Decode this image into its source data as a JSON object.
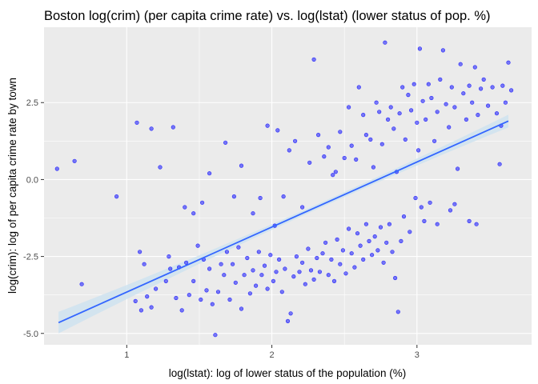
{
  "chart_data": {
    "type": "scatter",
    "title": "Boston log(crim) (per capita crime rate) vs. log(lstat) (lower status of pop. %)",
    "xlabel": "log(lstat): log of lower status of the population (%)",
    "ylabel": "log(crim): log of per capita crime rate by town",
    "xlim": [
      0.43,
      3.79
    ],
    "ylim": [
      -5.37,
      4.95
    ],
    "x_ticks": [
      1,
      2,
      3
    ],
    "x_tick_labels": [
      "1",
      "2",
      "3"
    ],
    "y_ticks": [
      -5.0,
      -2.5,
      0.0,
      2.5
    ],
    "y_tick_labels": [
      "-5.0",
      "-2.5",
      "0.0",
      "2.5"
    ],
    "grid": true,
    "legend": "none",
    "colors": {
      "panel": "#ebebeb",
      "grid": "#ffffff",
      "points": "#0000ff",
      "fit_line": "#3366ff",
      "confidence_band": "#cfe3f0"
    },
    "fit": {
      "method": "linear regression",
      "x_range": [
        0.53,
        3.63
      ],
      "y_at_x_min": -4.65,
      "y_at_x_max": 1.9,
      "ci_halfwidth_at_ends": 0.35,
      "ci_halfwidth_at_center": 0.08,
      "x_center": 2.37
    },
    "series": [
      {
        "points": [
          [
            0.52,
            0.35
          ],
          [
            0.64,
            0.6
          ],
          [
            0.69,
            -3.4
          ],
          [
            0.93,
            -0.55
          ],
          [
            1.07,
            1.85
          ],
          [
            1.17,
            1.65
          ],
          [
            1.32,
            1.7
          ],
          [
            1.09,
            -2.35
          ],
          [
            1.12,
            -2.75
          ],
          [
            1.06,
            -3.95
          ],
          [
            1.1,
            -4.25
          ],
          [
            1.14,
            -3.8
          ],
          [
            1.17,
            -4.15
          ],
          [
            1.2,
            -3.55
          ],
          [
            1.27,
            -3.3
          ],
          [
            1.29,
            -2.5
          ],
          [
            1.3,
            -2.9
          ],
          [
            1.34,
            -3.85
          ],
          [
            1.36,
            -2.85
          ],
          [
            1.38,
            -4.25
          ],
          [
            1.41,
            -2.7
          ],
          [
            1.43,
            -3.75
          ],
          [
            1.46,
            -3.3
          ],
          [
            1.49,
            -2.15
          ],
          [
            1.51,
            -3.9
          ],
          [
            1.53,
            -2.6
          ],
          [
            1.55,
            -3.6
          ],
          [
            1.57,
            -2.9
          ],
          [
            1.59,
            -4.05
          ],
          [
            1.61,
            -5.05
          ],
          [
            1.63,
            -3.65
          ],
          [
            1.65,
            -2.75
          ],
          [
            1.67,
            -3.1
          ],
          [
            1.69,
            -2.35
          ],
          [
            1.71,
            -3.9
          ],
          [
            1.73,
            -2.75
          ],
          [
            1.75,
            -3.35
          ],
          [
            1.77,
            -2.2
          ],
          [
            1.79,
            -4.2
          ],
          [
            1.81,
            -3.1
          ],
          [
            1.83,
            -2.55
          ],
          [
            1.85,
            -3.7
          ],
          [
            1.87,
            -2.95
          ],
          [
            1.89,
            -3.45
          ],
          [
            1.91,
            -2.35
          ],
          [
            1.93,
            -3.1
          ],
          [
            1.95,
            -2.8
          ],
          [
            1.97,
            -3.55
          ],
          [
            1.99,
            -2.45
          ],
          [
            2.01,
            -3.3
          ],
          [
            2.03,
            -3.0
          ],
          [
            2.05,
            -2.6
          ],
          [
            2.07,
            -3.65
          ],
          [
            2.09,
            -2.9
          ],
          [
            2.11,
            -4.6
          ],
          [
            2.13,
            -4.35
          ],
          [
            2.15,
            -3.15
          ],
          [
            2.17,
            -2.5
          ],
          [
            2.19,
            -3.0
          ],
          [
            2.21,
            -2.7
          ],
          [
            2.23,
            -3.4
          ],
          [
            2.25,
            -2.25
          ],
          [
            2.27,
            -2.95
          ],
          [
            2.29,
            -3.25
          ],
          [
            2.31,
            -2.55
          ],
          [
            2.33,
            -3.0
          ],
          [
            2.35,
            -2.4
          ],
          [
            2.37,
            -2.05
          ],
          [
            2.39,
            -3.1
          ],
          [
            2.41,
            -2.6
          ],
          [
            2.43,
            -3.3
          ],
          [
            2.45,
            -1.95
          ],
          [
            2.47,
            -2.75
          ],
          [
            2.49,
            -2.3
          ],
          [
            2.51,
            -3.05
          ],
          [
            2.53,
            -1.6
          ],
          [
            2.55,
            -2.4
          ],
          [
            2.57,
            -2.85
          ],
          [
            2.59,
            -1.75
          ],
          [
            2.61,
            -2.15
          ],
          [
            2.63,
            -2.6
          ],
          [
            2.65,
            -1.45
          ],
          [
            2.67,
            -2.0
          ],
          [
            2.69,
            -2.45
          ],
          [
            2.71,
            -1.85
          ],
          [
            2.73,
            -2.3
          ],
          [
            2.75,
            -1.55
          ],
          [
            2.77,
            -2.7
          ],
          [
            2.79,
            -2.05
          ],
          [
            2.81,
            -1.45
          ],
          [
            2.83,
            -2.35
          ],
          [
            2.85,
            -3.2
          ],
          [
            2.87,
            -4.3
          ],
          [
            2.89,
            -2.0
          ],
          [
            2.91,
            -1.2
          ],
          [
            2.95,
            -1.7
          ],
          [
            2.99,
            -0.6
          ],
          [
            3.03,
            -0.9
          ],
          [
            3.05,
            -1.35
          ],
          [
            3.09,
            -0.75
          ],
          [
            3.14,
            -1.45
          ],
          [
            3.23,
            -1.0
          ],
          [
            3.26,
            -0.8
          ],
          [
            3.36,
            -1.35
          ],
          [
            3.41,
            -1.45
          ],
          [
            1.23,
            0.4
          ],
          [
            1.4,
            -0.9
          ],
          [
            1.46,
            -1.1
          ],
          [
            1.52,
            -0.75
          ],
          [
            1.57,
            0.2
          ],
          [
            1.68,
            1.2
          ],
          [
            1.74,
            -0.55
          ],
          [
            1.79,
            0.45
          ],
          [
            1.87,
            -1.1
          ],
          [
            1.92,
            -0.6
          ],
          [
            1.97,
            1.75
          ],
          [
            2.02,
            -1.5
          ],
          [
            2.04,
            1.6
          ],
          [
            2.08,
            -0.55
          ],
          [
            2.12,
            0.95
          ],
          [
            2.16,
            1.25
          ],
          [
            2.21,
            -0.9
          ],
          [
            2.26,
            0.55
          ],
          [
            2.29,
            3.9
          ],
          [
            2.32,
            1.45
          ],
          [
            2.36,
            0.75
          ],
          [
            2.39,
            1.05
          ],
          [
            2.42,
            0.15
          ],
          [
            2.44,
            0.25
          ],
          [
            2.47,
            1.55
          ],
          [
            2.5,
            0.7
          ],
          [
            2.53,
            2.35
          ],
          [
            2.55,
            1.1
          ],
          [
            2.58,
            0.65
          ],
          [
            2.6,
            3.0
          ],
          [
            2.63,
            2.1
          ],
          [
            2.65,
            1.45
          ],
          [
            2.68,
            1.3
          ],
          [
            2.7,
            0.4
          ],
          [
            2.72,
            2.5
          ],
          [
            2.74,
            2.2
          ],
          [
            2.76,
            1.15
          ],
          [
            2.78,
            4.45
          ],
          [
            2.8,
            1.95
          ],
          [
            2.82,
            2.35
          ],
          [
            2.84,
            1.65
          ],
          [
            2.86,
            0.25
          ],
          [
            2.88,
            2.15
          ],
          [
            2.9,
            3.0
          ],
          [
            2.92,
            1.3
          ],
          [
            2.94,
            2.75
          ],
          [
            2.96,
            2.25
          ],
          [
            2.98,
            3.1
          ],
          [
            3.0,
            1.85
          ],
          [
            3.01,
            0.95
          ],
          [
            3.02,
            4.25
          ],
          [
            3.04,
            2.55
          ],
          [
            3.06,
            1.95
          ],
          [
            3.08,
            3.1
          ],
          [
            3.1,
            2.65
          ],
          [
            3.12,
            1.25
          ],
          [
            3.14,
            2.2
          ],
          [
            3.16,
            3.25
          ],
          [
            3.18,
            4.2
          ],
          [
            3.2,
            2.45
          ],
          [
            3.22,
            1.7
          ],
          [
            3.24,
            3.0
          ],
          [
            3.26,
            2.35
          ],
          [
            3.28,
            0.35
          ],
          [
            3.3,
            3.75
          ],
          [
            3.32,
            2.8
          ],
          [
            3.34,
            1.95
          ],
          [
            3.36,
            3.05
          ],
          [
            3.38,
            2.5
          ],
          [
            3.4,
            3.65
          ],
          [
            3.42,
            2.1
          ],
          [
            3.44,
            2.95
          ],
          [
            3.46,
            3.25
          ],
          [
            3.49,
            2.4
          ],
          [
            3.52,
            3.0
          ],
          [
            3.55,
            2.15
          ],
          [
            3.57,
            0.5
          ],
          [
            3.58,
            1.75
          ],
          [
            3.59,
            3.05
          ],
          [
            3.61,
            2.5
          ],
          [
            3.63,
            3.8
          ],
          [
            3.65,
            2.9
          ]
        ]
      }
    ]
  }
}
